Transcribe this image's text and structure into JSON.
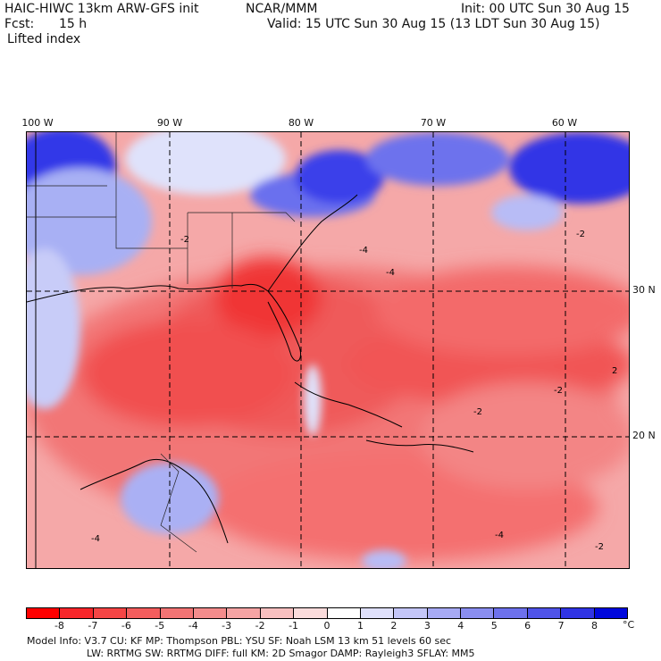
{
  "header": {
    "title": "HAIC-HIWC 13km ARW-GFS init",
    "org": "NCAR/MMM",
    "init": "Init: 00 UTC Sun 30 Aug 15",
    "fcst_label": "Fcst:",
    "fcst_value": "15 h",
    "valid": "Valid: 15 UTC Sun 30 Aug 15 (13 LDT Sun 30 Aug 15)",
    "field": "Lifted index"
  },
  "map": {
    "lon_labels": [
      "100 W",
      "90 W",
      "80 W",
      "70 W",
      "60 W"
    ],
    "lat_labels": [
      "30 N",
      "20 N"
    ],
    "contour_labels": [
      "-2",
      "-4",
      "-2",
      "-4",
      "-2",
      "2",
      "-4",
      "-2",
      "-2",
      "-4"
    ]
  },
  "colorbar": {
    "ticks": [
      "-8",
      "-7",
      "-6",
      "-5",
      "-4",
      "-3",
      "-2",
      "-1",
      "0",
      "1",
      "2",
      "3",
      "4",
      "5",
      "6",
      "7",
      "8"
    ],
    "unit": "°C",
    "colors": [
      "#ff0000",
      "#f8262a",
      "#f54545",
      "#f35d5d",
      "#f27474",
      "#f38c8c",
      "#f5a4a4",
      "#f8c0c0",
      "#fbdcdc",
      "#ffffff",
      "#dfe0fb",
      "#c4c6f8",
      "#a7aaf4",
      "#8a8ef0",
      "#6d71ec",
      "#4f53e8",
      "#3034e4",
      "#0008dd"
    ]
  },
  "model_info": {
    "line1": "Model Info: V3.7      CU: KF       MP: Thompson     PBL: YSU       SF: Noah LSM     13 km    51 levels   60 sec",
    "line2": "LW: RRTMG      SW: RRTMG   DIFF: full    KM: 2D Smagor DAMP: Rayleigh3   SFLAY: MM5"
  }
}
